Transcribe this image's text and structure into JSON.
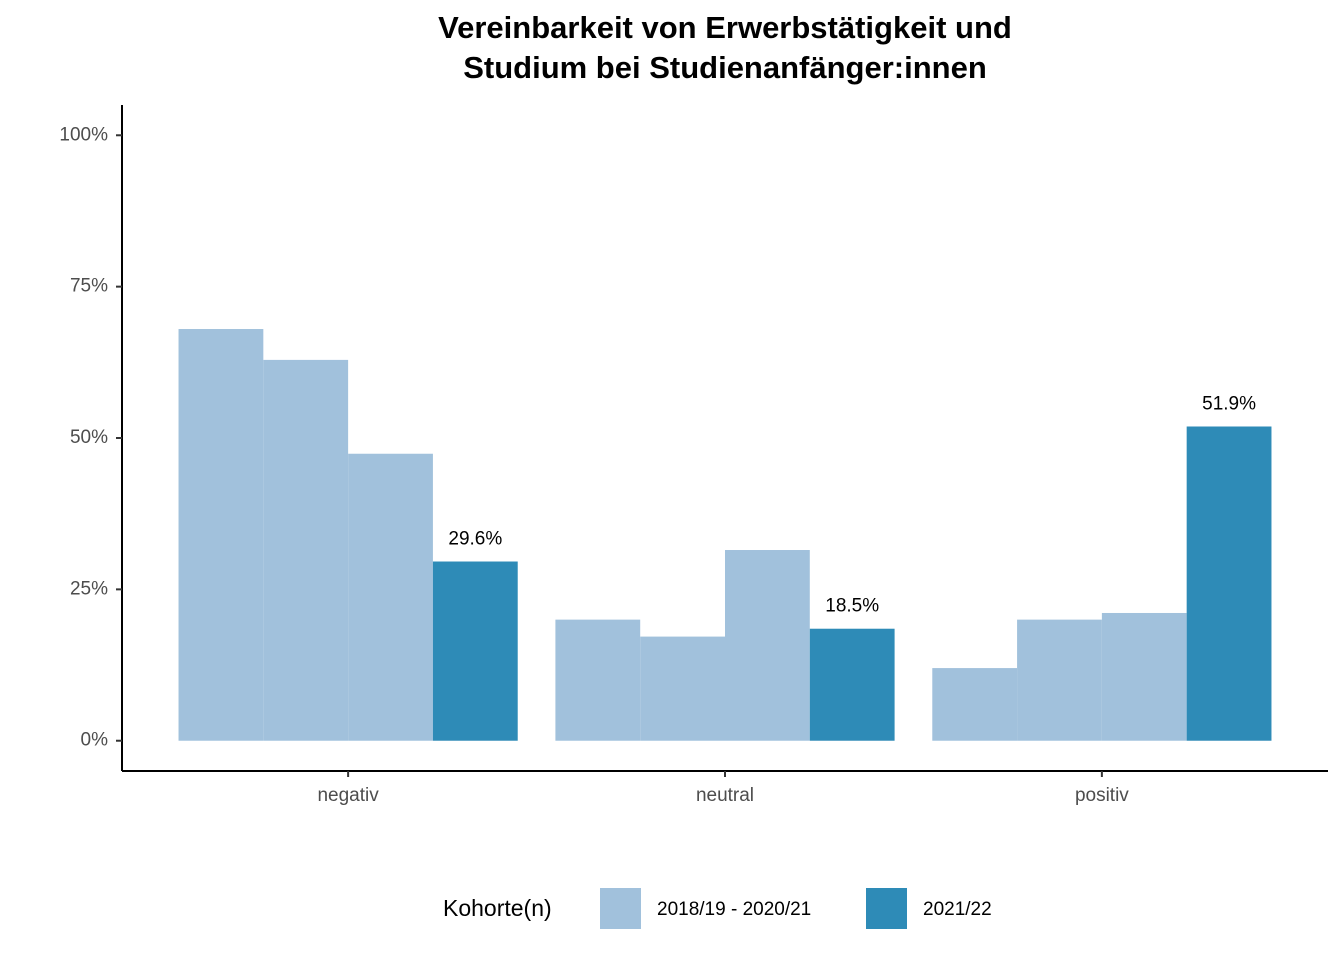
{
  "chart_data": {
    "type": "bar",
    "title": [
      "Vereinbarkeit von Erwerbstätigkeit und",
      "Studium bei Studienanfänger:innen"
    ],
    "categories": [
      "negativ",
      "neutral",
      "positiv"
    ],
    "series": [
      {
        "color": "#a1c1dc",
        "values": [
          68.0,
          20.0,
          12.0
        ]
      },
      {
        "color": "#a1c1dc",
        "values": [
          62.9,
          17.2,
          20.0
        ]
      },
      {
        "color": "#a1c1dc",
        "values": [
          47.4,
          31.5,
          21.1
        ]
      },
      {
        "color": "#2e8bb7",
        "values": [
          29.6,
          18.5,
          51.9
        ],
        "value_labels": [
          "29.6%",
          "18.5%",
          "51.9%"
        ]
      }
    ],
    "legend": {
      "title": "Kohorte(n)",
      "position": "bottom",
      "entries": [
        {
          "name": "2018/19 - 2020/21",
          "color": "#a1c1dc"
        },
        {
          "name": "2021/22",
          "color": "#2e8bb7"
        }
      ]
    },
    "ylim": [
      -5,
      105
    ],
    "yticks": [
      {
        "value": 0,
        "label": "0%"
      },
      {
        "value": 25,
        "label": "25%"
      },
      {
        "value": 50,
        "label": "50%"
      },
      {
        "value": 75,
        "label": "75%"
      },
      {
        "value": 100,
        "label": "100%"
      }
    ],
    "grid": false
  }
}
